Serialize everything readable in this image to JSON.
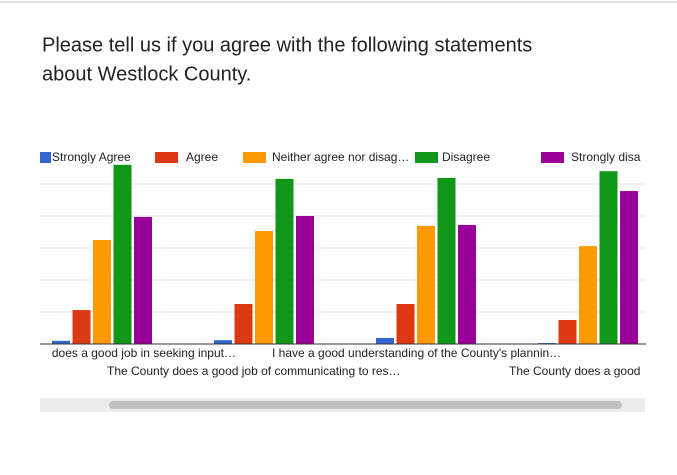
{
  "chart_data": {
    "type": "bar",
    "title_lines": [
      "Please tell us if you agree with the following statements",
      "about Westlock County."
    ],
    "categories": [
      "does a good job in seeking input…",
      "The County does a good job of communicating to res…",
      "I have a good understanding of the County's plannin…",
      "The County does a good"
    ],
    "series": [
      {
        "name": "Strongly Agree",
        "color": "#3366cc",
        "values": [
          0.1,
          0.12,
          0.19,
          0.03
        ]
      },
      {
        "name": "Agree",
        "color": "#dc3912",
        "values": [
          1.06,
          1.25,
          1.25,
          0.75
        ]
      },
      {
        "name": "Neither agree nor disag…",
        "color": "#ff9900",
        "values": [
          3.25,
          3.53,
          3.69,
          3.06
        ]
      },
      {
        "name": "Disagree",
        "color": "#109618",
        "values": [
          5.6,
          5.16,
          5.19,
          5.4
        ]
      },
      {
        "name": "Strongly disa",
        "color": "#990099",
        "values": [
          3.97,
          4.0,
          3.72,
          4.78
        ]
      }
    ],
    "ylim": [
      0,
      6
    ],
    "gridlines": [
      1,
      2,
      3,
      4,
      5
    ],
    "grid": true
  }
}
